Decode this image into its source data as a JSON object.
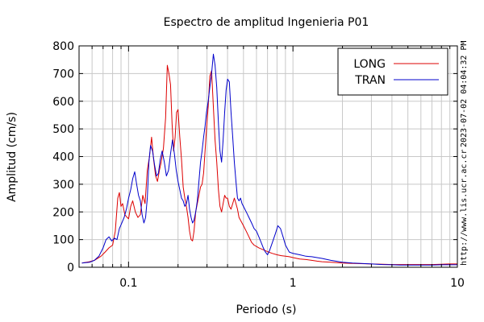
{
  "chart_data": {
    "type": "line",
    "title": "Espectro de amplitud Ingenieria P01",
    "xlabel": "Periodo (s)",
    "ylabel": "Amplitud (cm/s)",
    "x_scale": "log",
    "xlim": [
      0.05,
      10
    ],
    "ylim": [
      0,
      800
    ],
    "grid": true,
    "legend_position": "top-right",
    "x_tick_labels": [
      "0.1",
      "1",
      "10"
    ],
    "y_tick_labels": [
      "0",
      "100",
      "200",
      "300",
      "400",
      "500",
      "600",
      "700",
      "800"
    ],
    "side_text": {
      "url": "http://www.lis.ucr.ac.cr",
      "timestamp": "2023-07-02 04:04:32 PM"
    },
    "series": [
      {
        "name": "LONG",
        "color": "#dd0000",
        "x": [
          0.052,
          0.058,
          0.062,
          0.068,
          0.072,
          0.076,
          0.08,
          0.083,
          0.086,
          0.088,
          0.09,
          0.092,
          0.095,
          0.098,
          0.1,
          0.103,
          0.106,
          0.11,
          0.114,
          0.118,
          0.122,
          0.126,
          0.13,
          0.134,
          0.138,
          0.142,
          0.146,
          0.15,
          0.154,
          0.158,
          0.163,
          0.168,
          0.172,
          0.176,
          0.18,
          0.184,
          0.188,
          0.192,
          0.196,
          0.2,
          0.205,
          0.21,
          0.215,
          0.22,
          0.225,
          0.23,
          0.235,
          0.24,
          0.245,
          0.25,
          0.256,
          0.262,
          0.268,
          0.274,
          0.28,
          0.286,
          0.292,
          0.298,
          0.305,
          0.312,
          0.32,
          0.328,
          0.336,
          0.344,
          0.352,
          0.36,
          0.368,
          0.376,
          0.384,
          0.392,
          0.4,
          0.41,
          0.42,
          0.43,
          0.44,
          0.45,
          0.46,
          0.47,
          0.48,
          0.49,
          0.5,
          0.52,
          0.54,
          0.56,
          0.58,
          0.6,
          0.62,
          0.65,
          0.68,
          0.71,
          0.75,
          0.8,
          0.85,
          0.9,
          0.95,
          1.0,
          1.1,
          1.2,
          1.3,
          1.4,
          1.5,
          1.7,
          2.0,
          2.3,
          2.6,
          3.0,
          3.5,
          4.0,
          4.5,
          5.0,
          6.0,
          7.0,
          8.0,
          9.0,
          10.0
        ],
        "y": [
          15,
          20,
          25,
          40,
          55,
          70,
          80,
          130,
          250,
          270,
          220,
          230,
          190,
          180,
          175,
          220,
          240,
          200,
          180,
          190,
          260,
          230,
          350,
          400,
          470,
          390,
          330,
          310,
          350,
          380,
          430,
          540,
          730,
          700,
          660,
          520,
          420,
          470,
          560,
          570,
          470,
          390,
          290,
          250,
          220,
          180,
          130,
          100,
          95,
          130,
          200,
          230,
          260,
          290,
          300,
          340,
          420,
          500,
          580,
          690,
          710,
          580,
          460,
          380,
          280,
          220,
          200,
          230,
          260,
          250,
          250,
          220,
          210,
          230,
          250,
          230,
          210,
          180,
          170,
          160,
          150,
          130,
          110,
          90,
          80,
          75,
          70,
          65,
          60,
          55,
          50,
          45,
          42,
          40,
          38,
          35,
          30,
          28,
          25,
          22,
          20,
          18,
          15,
          14,
          13,
          12,
          11,
          10,
          10,
          10,
          10,
          10,
          11,
          12,
          12
        ]
      },
      {
        "name": "TRAN",
        "color": "#0000cc",
        "x": [
          0.052,
          0.058,
          0.062,
          0.066,
          0.07,
          0.073,
          0.076,
          0.079,
          0.082,
          0.085,
          0.088,
          0.091,
          0.094,
          0.097,
          0.1,
          0.103,
          0.106,
          0.109,
          0.112,
          0.115,
          0.118,
          0.121,
          0.124,
          0.127,
          0.13,
          0.133,
          0.136,
          0.14,
          0.144,
          0.148,
          0.152,
          0.156,
          0.16,
          0.165,
          0.17,
          0.175,
          0.18,
          0.185,
          0.19,
          0.195,
          0.2,
          0.205,
          0.21,
          0.215,
          0.22,
          0.225,
          0.23,
          0.235,
          0.24,
          0.245,
          0.25,
          0.256,
          0.262,
          0.268,
          0.274,
          0.28,
          0.286,
          0.292,
          0.298,
          0.305,
          0.312,
          0.32,
          0.328,
          0.336,
          0.344,
          0.352,
          0.36,
          0.368,
          0.376,
          0.384,
          0.392,
          0.4,
          0.41,
          0.42,
          0.43,
          0.44,
          0.45,
          0.46,
          0.47,
          0.48,
          0.49,
          0.5,
          0.52,
          0.54,
          0.56,
          0.58,
          0.6,
          0.62,
          0.64,
          0.66,
          0.68,
          0.7,
          0.72,
          0.75,
          0.78,
          0.81,
          0.84,
          0.87,
          0.9,
          0.95,
          1.0,
          1.1,
          1.2,
          1.3,
          1.4,
          1.5,
          1.7,
          2.0,
          2.3,
          2.6,
          3.0,
          3.5,
          4.0,
          4.5,
          5.0,
          6.0,
          7.0,
          8.0,
          9.0,
          10.0
        ],
        "y": [
          15,
          18,
          25,
          40,
          70,
          100,
          110,
          95,
          105,
          100,
          140,
          160,
          180,
          210,
          250,
          280,
          320,
          345,
          300,
          260,
          240,
          190,
          160,
          180,
          250,
          380,
          440,
          420,
          370,
          330,
          340,
          390,
          420,
          380,
          330,
          350,
          410,
          460,
          410,
          350,
          310,
          280,
          250,
          240,
          220,
          230,
          260,
          210,
          180,
          160,
          170,
          200,
          240,
          310,
          380,
          420,
          470,
          510,
          560,
          600,
          650,
          700,
          770,
          730,
          650,
          520,
          420,
          380,
          460,
          560,
          640,
          680,
          670,
          560,
          470,
          380,
          310,
          250,
          240,
          250,
          230,
          220,
          200,
          180,
          160,
          140,
          130,
          110,
          90,
          70,
          55,
          45,
          60,
          90,
          120,
          150,
          140,
          110,
          80,
          55,
          50,
          45,
          40,
          38,
          35,
          32,
          25,
          18,
          15,
          14,
          12,
          10,
          9,
          8,
          8,
          8,
          8,
          9,
          9,
          9
        ]
      }
    ]
  }
}
